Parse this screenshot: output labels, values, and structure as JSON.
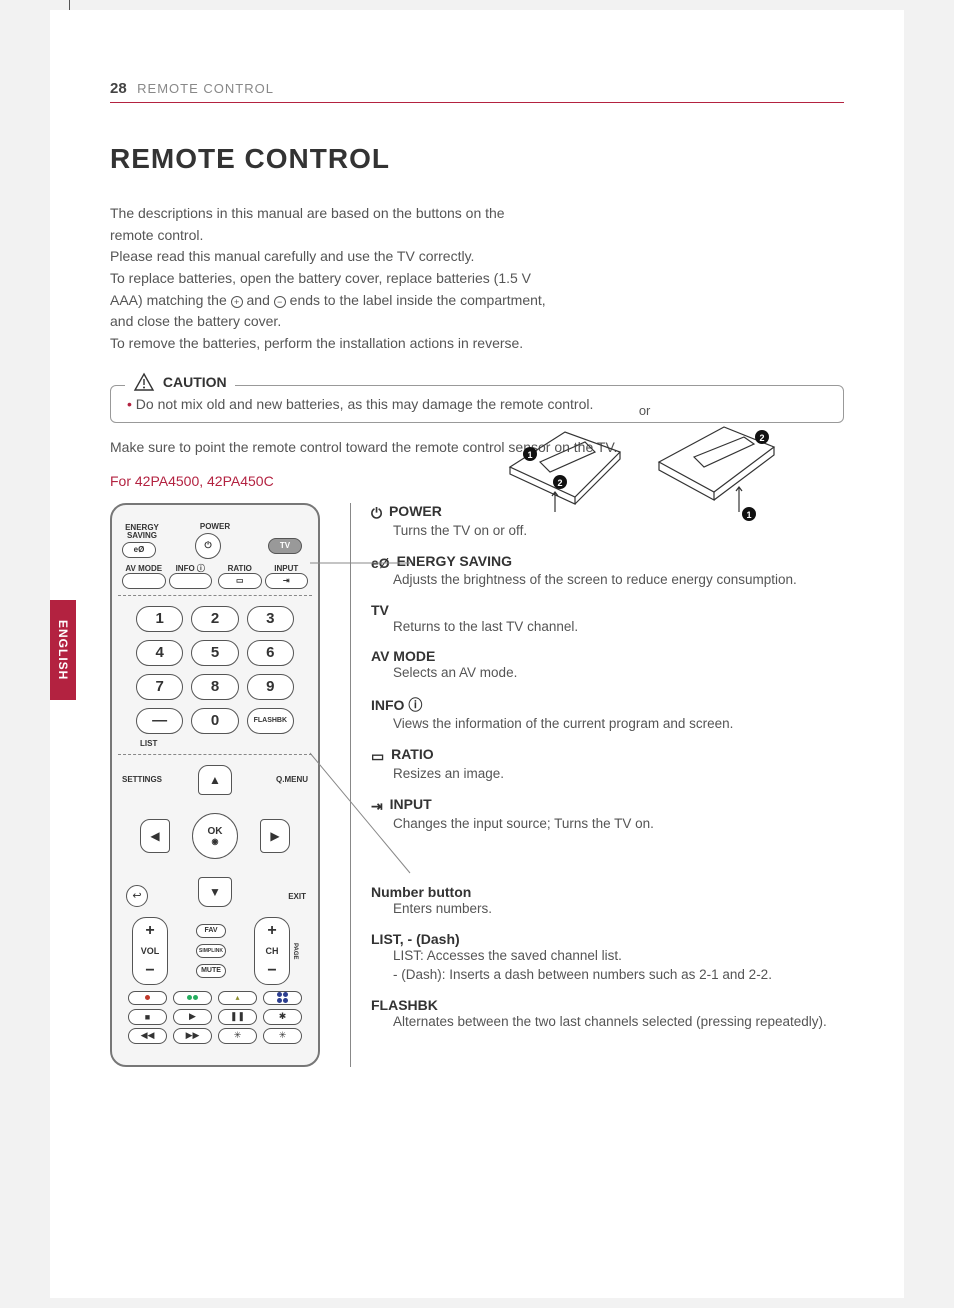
{
  "header": {
    "page_number": "28",
    "section": "REMOTE CONTROL"
  },
  "title": "REMOTE CONTROL",
  "language_tab": "ENGLISH",
  "intro_text": "The descriptions in this manual are based on the buttons on the remote control.\nPlease read this manual carefully and use the TV correctly.\nTo replace batteries, open the battery cover, replace batteries (1.5 V AAA) matching the ⊕ and ⊖ ends to the label inside the compartment, and close the battery cover.\nTo remove the batteries, perform the installation actions in reverse.",
  "battery_or": "or",
  "caution": {
    "label": "CAUTION",
    "items": [
      "Do not mix old and new batteries, as this may damage the remote control."
    ]
  },
  "sensor_note": "Make sure to point the remote control toward the remote control sensor on the TV.",
  "model_label": "For 42PA4500, 42PA450C",
  "remote": {
    "top_labels": {
      "energy_saving": "ENERGY SAVING",
      "power": "POWER",
      "tv": "TV"
    },
    "row2_labels": {
      "av_mode": "AV MODE",
      "info": "INFO ⓘ",
      "ratio": "RATIO",
      "input": "INPUT"
    },
    "numbers": [
      "1",
      "2",
      "3",
      "4",
      "5",
      "6",
      "7",
      "8",
      "9",
      "—",
      "0",
      "FLASHBK"
    ],
    "list_label": "LIST",
    "nav": {
      "settings": "SETTINGS",
      "qmenu": "Q.MENU",
      "ok": "OK",
      "exit": "EXIT",
      "back": "↩"
    },
    "vol": "VOL",
    "ch": "CH",
    "page": "PAGE",
    "mid_buttons": [
      "FAV",
      "SIMPLINK",
      "MUTE"
    ],
    "colors": [
      "#c0392b",
      "#27ae60",
      "#8e8e2e",
      "#2c3e8f"
    ]
  },
  "descriptions": {
    "block1": [
      {
        "title": "POWER",
        "icon": "power",
        "body": "Turns the TV on or off."
      },
      {
        "title": "ENERGY SAVING",
        "icon": "energy",
        "body": "Adjusts the brightness of the screen to reduce energy consumption."
      },
      {
        "title": "TV",
        "icon": "",
        "body": "Returns to the last TV channel."
      },
      {
        "title": "AV MODE",
        "icon": "",
        "body": "Selects an AV mode."
      },
      {
        "title": "INFO ⓘ",
        "icon": "",
        "body": "Views the information of the current program and screen."
      },
      {
        "title": "RATIO",
        "icon": "ratio",
        "body": "Resizes an image."
      },
      {
        "title": "INPUT",
        "icon": "input",
        "body": "Changes the input source; Turns the TV on."
      }
    ],
    "block2": [
      {
        "title": "Number button",
        "body": "Enters numbers."
      },
      {
        "title": "LIST, - (Dash)",
        "body": "LIST: Accesses the saved channel list.\n- (Dash): Inserts a dash between numbers such as 2-1 and 2-2."
      },
      {
        "title": "FLASHBK",
        "body": "Alternates between the two last channels selected (pressing repeatedly)."
      }
    ]
  },
  "accent_color": "#b32240"
}
